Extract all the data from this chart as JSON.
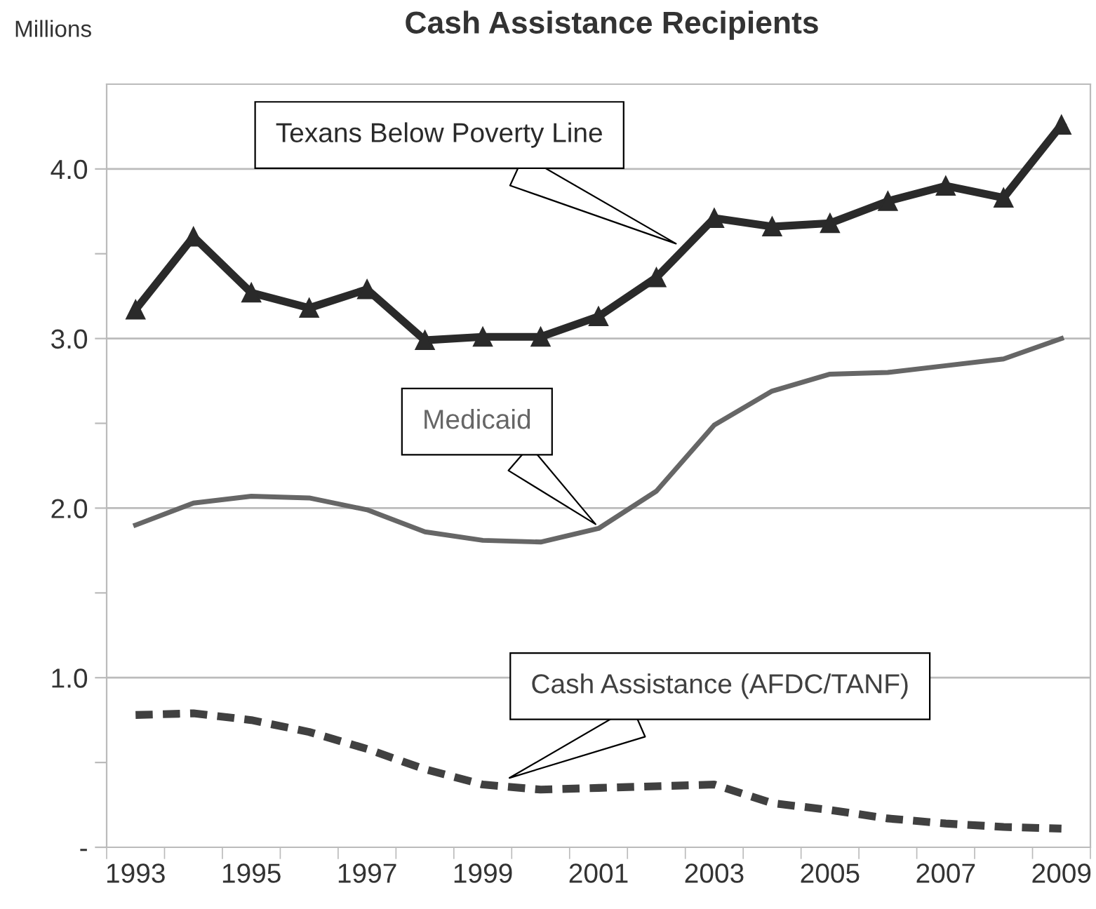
{
  "chart_data": {
    "type": "line",
    "title": "Cash Assistance Recipients",
    "ylabel": "Millions",
    "categories": [
      "1993",
      null,
      "1995",
      null,
      "1997",
      null,
      "1999",
      null,
      "2001",
      null,
      "2003",
      null,
      "2005",
      null,
      "2007",
      null,
      "2009"
    ],
    "series": [
      {
        "name": "Texans Below Poverty Line",
        "color": "#2a2a2a",
        "marker": "triangle",
        "line_style": "solid",
        "values": [
          3.17,
          3.6,
          3.27,
          3.18,
          3.29,
          2.99,
          3.01,
          3.01,
          3.13,
          3.36,
          3.71,
          3.66,
          3.68,
          3.81,
          3.9,
          3.83,
          4.26
        ]
      },
      {
        "name": "Medicaid",
        "color": "#666666",
        "marker": "none",
        "line_style": "solid",
        "values": [
          1.9,
          2.03,
          2.07,
          2.06,
          1.99,
          1.86,
          1.81,
          1.8,
          1.88,
          2.1,
          2.49,
          2.69,
          2.79,
          2.8,
          2.84,
          2.88,
          3.0
        ]
      },
      {
        "name": "Cash Assistance (AFDC/TANF)",
        "color": "#404040",
        "marker": "none",
        "line_style": "dashed",
        "values": [
          0.78,
          0.79,
          0.75,
          0.68,
          0.58,
          0.46,
          0.37,
          0.34,
          0.35,
          0.36,
          0.37,
          0.26,
          0.22,
          0.17,
          0.14,
          0.12,
          0.11
        ]
      }
    ],
    "ylim": [
      0,
      4.5
    ],
    "yticks": [
      {
        "value": 0,
        "label": "-"
      },
      {
        "value": 0.5,
        "label": null
      },
      {
        "value": 1,
        "label": "1.0"
      },
      {
        "value": 1.5,
        "label": null
      },
      {
        "value": 2,
        "label": "2.0"
      },
      {
        "value": 2.5,
        "label": null
      },
      {
        "value": 3,
        "label": "3.0"
      },
      {
        "value": 3.5,
        "label": null
      },
      {
        "value": 4,
        "label": "4.0"
      }
    ],
    "grid": "y",
    "legend": false
  }
}
